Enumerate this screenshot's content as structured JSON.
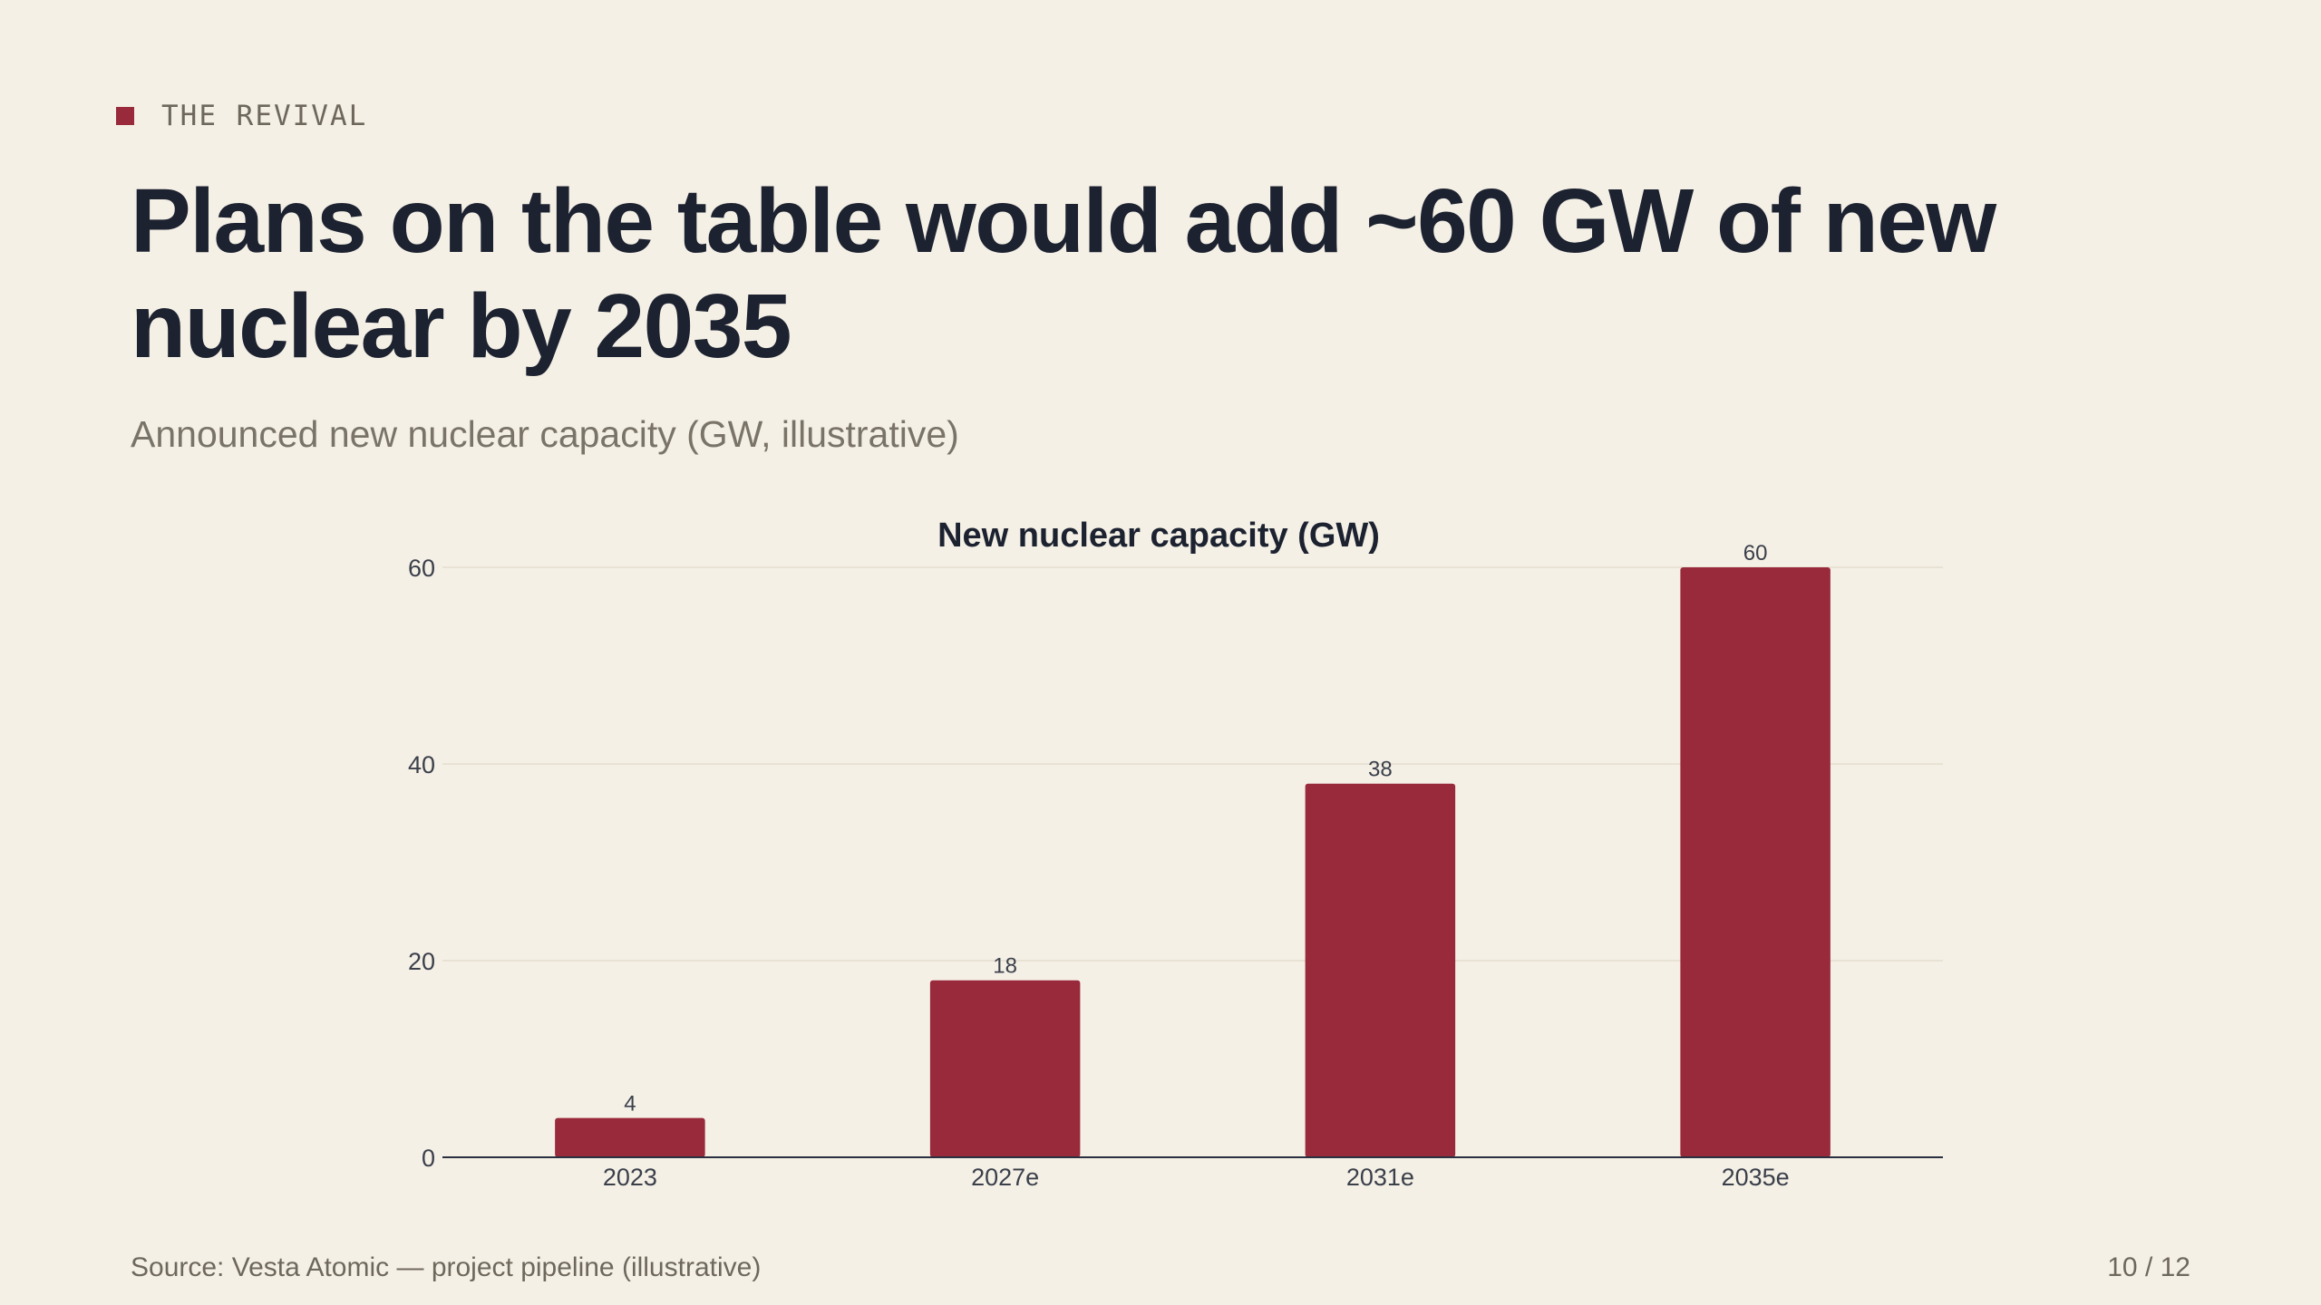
{
  "kicker": "THE REVIVAL",
  "headline": "Plans on the table would add ~60 GW of new nuclear by 2035",
  "subtitle": "Announced new nuclear capacity (GW, illustrative)",
  "footer": {
    "source": "Source: Vesta Atomic — project pipeline (illustrative)",
    "page": "10 / 12"
  },
  "colors": {
    "background": "#f5f0e6",
    "accent": "#992a3b",
    "text": "#1c2230",
    "muted": "#6e685c"
  },
  "chart_data": {
    "type": "bar",
    "title": "New nuclear capacity (GW)",
    "xlabel": "",
    "ylabel": "",
    "categories": [
      "2023",
      "2027e",
      "2031e",
      "2035e"
    ],
    "values": [
      4,
      18,
      38,
      60
    ],
    "ylim": [
      0,
      60
    ],
    "yticks": [
      0,
      20,
      40,
      60
    ],
    "grid": true,
    "legend": "none",
    "bar_color": "#992a3b"
  }
}
